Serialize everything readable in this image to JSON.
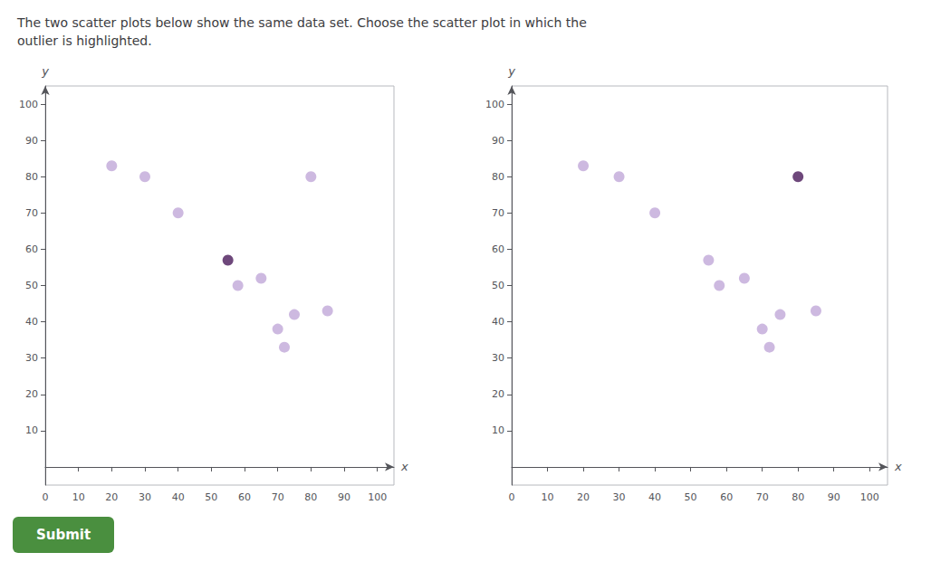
{
  "chart_data": [
    {
      "type": "scatter",
      "title": "The two scatter plots below show the same data set. Choose the scatter plot in which the\noutlier is highlighted.",
      "annotations": [
        "Submit"
      ],
      "x": [
        20,
        30,
        40,
        55,
        58,
        65,
        70,
        72,
        75,
        80,
        85
      ],
      "values": [
        83,
        80,
        70,
        57,
        50,
        52,
        38,
        33,
        42,
        80,
        43
      ],
      "colors": [
        "#c0a8d8",
        "#c0a8d8",
        "#c0a8d8",
        "#4a1a5a",
        "#c0a8d8",
        "#c0a8d8",
        "#c0a8d8",
        "#c0a8d8",
        "#c0a8d8",
        "#c0a8d8",
        "#c0a8d8"
      ],
      "xlabel": "x",
      "ylabel": "y",
      "xlim": [
        0,
        105
      ],
      "ylim": [
        -5,
        105
      ],
      "xticks": [
        0,
        10,
        20,
        30,
        40,
        50,
        60,
        70,
        80,
        90,
        100
      ],
      "yticks": [
        10,
        20,
        30,
        40,
        50,
        60,
        70,
        80,
        90,
        100
      ],
      "grid": false
    },
    {
      "type": "scatter",
      "x": [
        20,
        30,
        40,
        55,
        58,
        65,
        70,
        72,
        75,
        80,
        85
      ],
      "values": [
        83,
        80,
        70,
        57,
        50,
        52,
        38,
        33,
        42,
        80,
        43
      ],
      "colors": [
        "#c0a8d8",
        "#c0a8d8",
        "#c0a8d8",
        "#c0a8d8",
        "#c0a8d8",
        "#c0a8d8",
        "#c0a8d8",
        "#c0a8d8",
        "#c0a8d8",
        "#4a1a5a",
        "#c0a8d8"
      ],
      "xlabel": "x",
      "ylabel": "y",
      "xlim": [
        0,
        105
      ],
      "ylim": [
        -5,
        105
      ],
      "xticks": [
        0,
        10,
        20,
        30,
        40,
        50,
        60,
        70,
        80,
        90,
        100
      ],
      "yticks": [
        10,
        20,
        30,
        40,
        50,
        60,
        70,
        80,
        90,
        100
      ],
      "grid": false
    }
  ]
}
